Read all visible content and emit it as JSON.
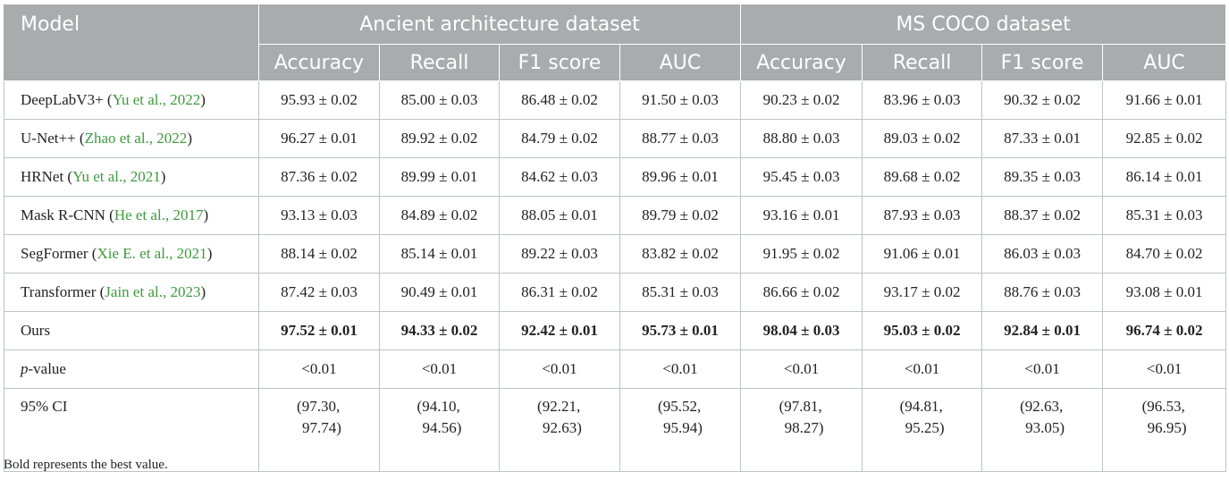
{
  "table": {
    "model_header": "Model",
    "groups": [
      "Ancient architecture dataset",
      "MS COCO dataset"
    ],
    "metrics": [
      "Accuracy",
      "Recall",
      "F1 score",
      "AUC",
      "Accuracy",
      "Recall",
      "F1 score",
      "AUC"
    ],
    "rows": [
      {
        "name": "DeepLabV3+",
        "cite": "Yu et al., 2022",
        "values": [
          "95.93 ± 0.02",
          "85.00 ± 0.03",
          "86.48 ± 0.02",
          "91.50 ± 0.03",
          "90.23 ± 0.02",
          "83.96 ± 0.03",
          "90.32 ± 0.02",
          "91.66 ± 0.01"
        ]
      },
      {
        "name": "U-Net++",
        "cite": "Zhao et al., 2022",
        "values": [
          "96.27 ± 0.01",
          "89.92 ± 0.02",
          "84.79 ± 0.02",
          "88.77 ± 0.03",
          "88.80 ± 0.03",
          "89.03 ± 0.02",
          "87.33 ± 0.01",
          "92.85 ± 0.02"
        ]
      },
      {
        "name": "HRNet",
        "cite": "Yu et al., 2021",
        "values": [
          "87.36 ± 0.02",
          "89.99 ± 0.01",
          "84.62 ± 0.03",
          "89.96 ± 0.01",
          "95.45 ± 0.03",
          "89.68 ± 0.02",
          "89.35 ± 0.03",
          "86.14 ± 0.01"
        ]
      },
      {
        "name": "Mask R-CNN",
        "cite": "He et al., 2017",
        "values": [
          "93.13 ± 0.03",
          "84.89 ± 0.02",
          "88.05 ± 0.01",
          "89.79 ± 0.02",
          "93.16 ± 0.01",
          "87.93 ± 0.03",
          "88.37 ± 0.02",
          "85.31 ± 0.03"
        ]
      },
      {
        "name": "SegFormer",
        "cite": "Xie E. et al., 2021",
        "values": [
          "88.14 ± 0.02",
          "85.14 ± 0.01",
          "89.22 ± 0.03",
          "83.82 ± 0.02",
          "91.95 ± 0.02",
          "91.06 ± 0.01",
          "86.03 ± 0.03",
          "84.70 ± 0.02"
        ]
      },
      {
        "name": "Transformer",
        "cite": "Jain et al., 2023",
        "values": [
          "87.42 ± 0.03",
          "90.49 ± 0.01",
          "86.31 ± 0.02",
          "85.31 ± 0.03",
          "86.66 ± 0.02",
          "93.17 ± 0.02",
          "88.76 ± 0.03",
          "93.08 ± 0.01"
        ]
      }
    ],
    "ours": {
      "name": "Ours",
      "values": [
        "97.52 ± 0.01",
        "94.33 ± 0.02",
        "92.42 ± 0.01",
        "95.73 ± 0.01",
        "98.04 ± 0.03",
        "95.03 ± 0.02",
        "92.84 ± 0.01",
        "96.74 ± 0.02"
      ]
    },
    "pvalue": {
      "name_italic": "p",
      "name_rest": "-value",
      "values": [
        "<0.01",
        "<0.01",
        "<0.01",
        "<0.01",
        "<0.01",
        "<0.01",
        "<0.01",
        "<0.01"
      ]
    },
    "ci": {
      "name": "95% CI",
      "values": [
        [
          "(97.30,",
          "97.74)"
        ],
        [
          "(94.10,",
          "94.56)"
        ],
        [
          "(92.21,",
          "92.63)"
        ],
        [
          "(95.52,",
          "95.94)"
        ],
        [
          "(97.81,",
          "98.27)"
        ],
        [
          "(94.81,",
          "95.25)"
        ],
        [
          "(92.63,",
          "93.05)"
        ],
        [
          "(96.53,",
          "96.95)"
        ]
      ]
    }
  },
  "footnote": "Bold represents the best value."
}
